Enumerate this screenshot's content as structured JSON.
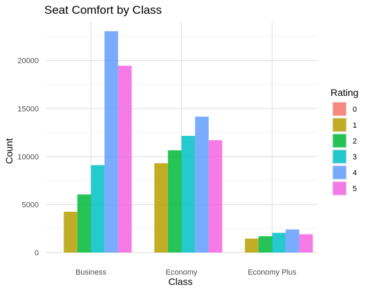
{
  "chart_data": {
    "type": "bar",
    "title": "Seat Comfort by Class",
    "xlabel": "Class",
    "ylabel": "Count",
    "categories": [
      "Business",
      "Economy",
      "Economy Plus"
    ],
    "ylim": [
      0,
      24000
    ],
    "yticks": [
      0,
      5000,
      10000,
      15000,
      20000
    ],
    "ytick_labels": [
      "0",
      "5000",
      "10000",
      "15000",
      "20000"
    ],
    "grid": true,
    "legend": {
      "title": "Rating",
      "position": "right"
    },
    "series": [
      {
        "name": "0",
        "color": "#F8766D",
        "values": [
          0,
          0,
          0
        ]
      },
      {
        "name": "1",
        "color": "#B79F00",
        "values": [
          4250,
          9300,
          1450
        ]
      },
      {
        "name": "2",
        "color": "#00BA38",
        "values": [
          6050,
          10650,
          1700
        ]
      },
      {
        "name": "3",
        "color": "#00BFC4",
        "values": [
          9100,
          12150,
          2050
        ]
      },
      {
        "name": "4",
        "color": "#619CFF",
        "values": [
          23050,
          14150,
          2400
        ]
      },
      {
        "name": "5",
        "color": "#F564E3",
        "values": [
          19450,
          11700,
          1900
        ]
      }
    ]
  }
}
